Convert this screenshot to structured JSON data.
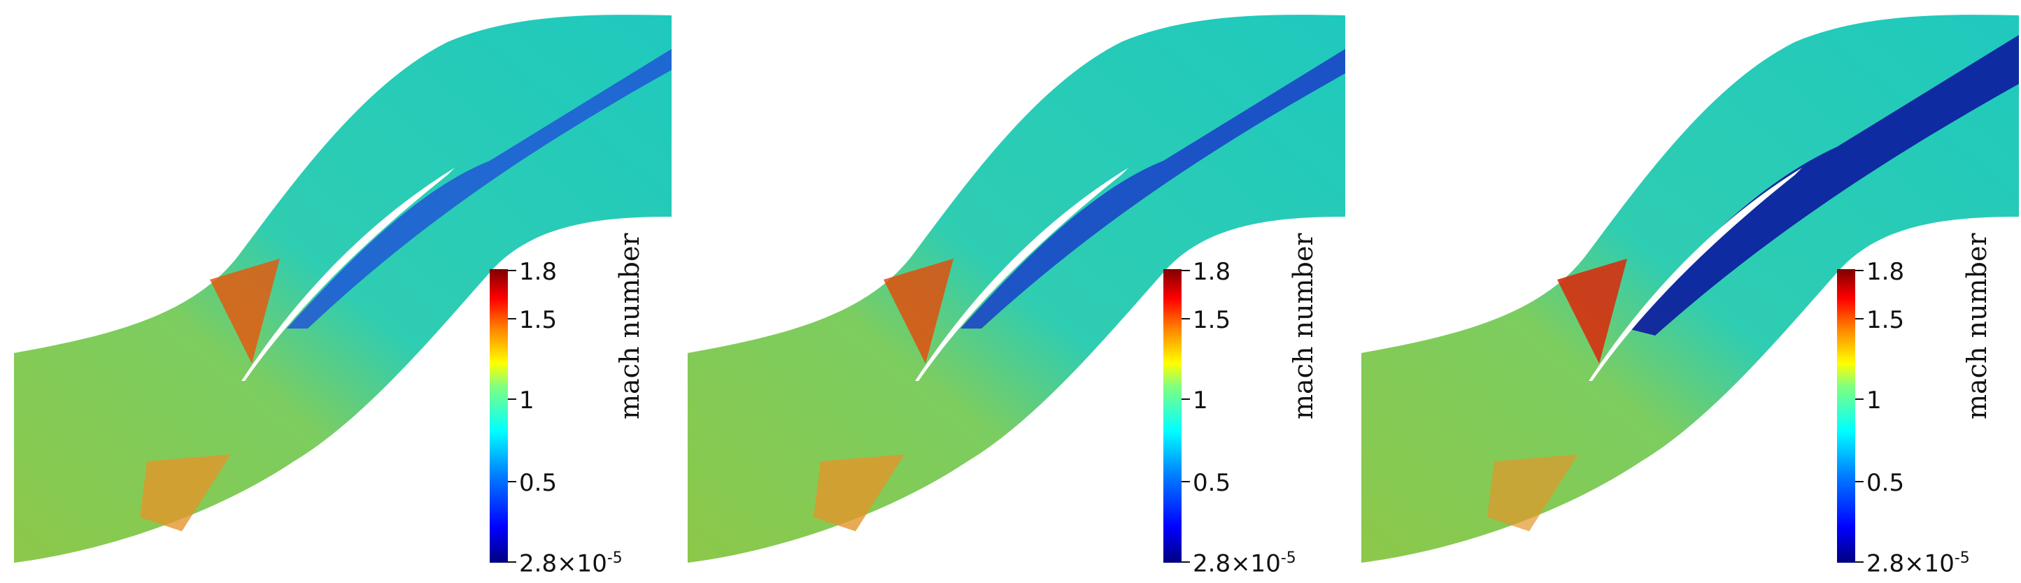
{
  "colorbar": {
    "title": "mach number",
    "ticks": [
      {
        "label": "1.8",
        "value": 1.8
      },
      {
        "label": "1.5",
        "value": 1.5
      },
      {
        "label": "1",
        "value": 1.0
      },
      {
        "label": "0.5",
        "value": 0.5
      }
    ],
    "min_label_base": "2.8×10",
    "min_label_exp": "-5",
    "min_value": 2.8e-05,
    "max_value": 1.8,
    "colormap": [
      "#00007f",
      "#0000ff",
      "#0080ff",
      "#00ffff",
      "#80ff80",
      "#ffff00",
      "#ff8000",
      "#ff0000",
      "#7f0000"
    ]
  },
  "panels": [
    {
      "id": "panel-1",
      "inlet_color": "#7cd24a",
      "shock_color": "#e35a10",
      "wake_color": "#1f4fd8"
    },
    {
      "id": "panel-2",
      "inlet_color": "#7cd24a",
      "shock_color": "#e04f0e",
      "wake_color": "#1a3ec9"
    },
    {
      "id": "panel-3",
      "inlet_color": "#6fd04c",
      "shock_color": "#d63010",
      "wake_color": "#0c1a9f"
    }
  ]
}
